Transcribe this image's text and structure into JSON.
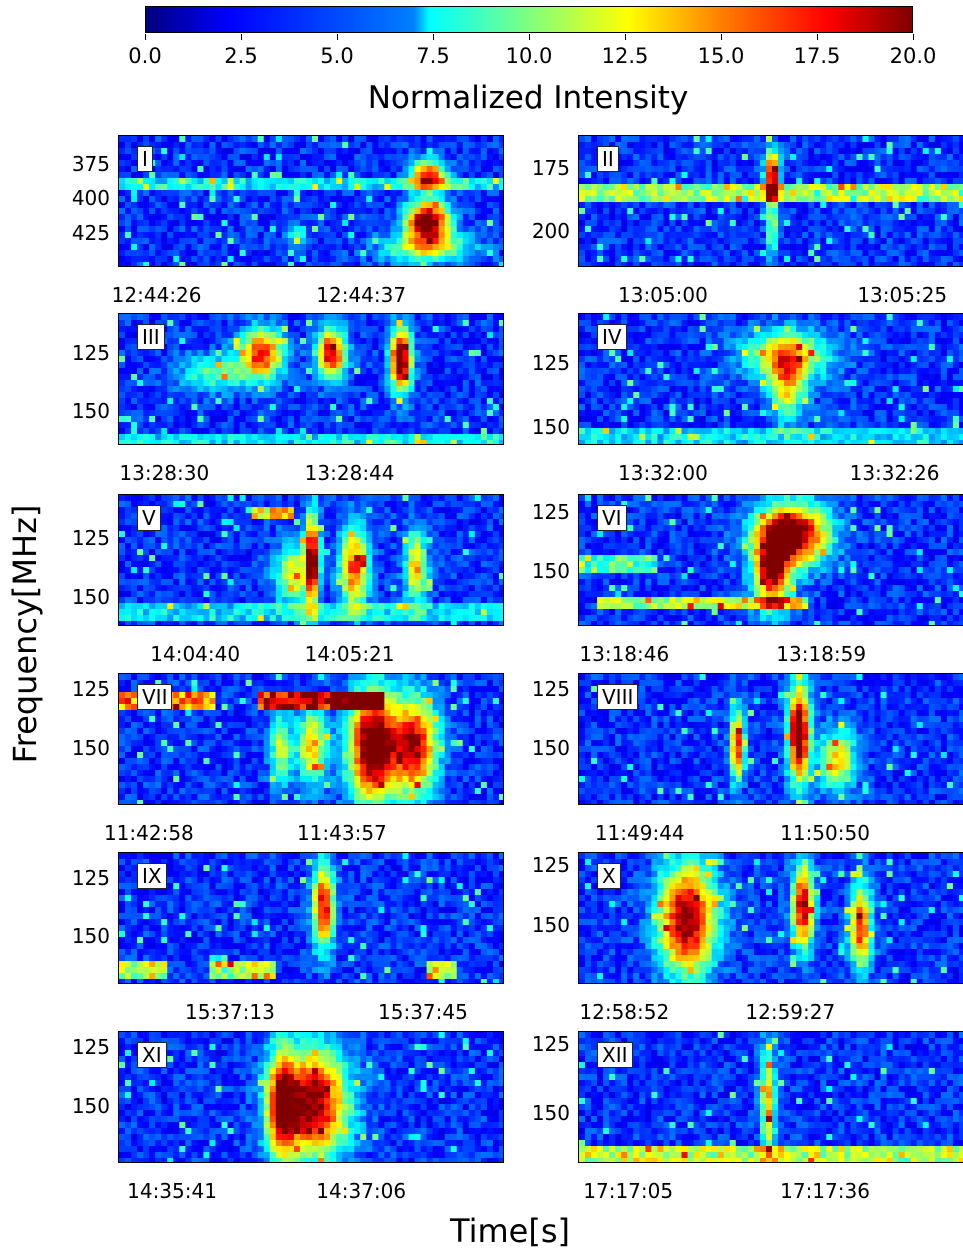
{
  "colorbar": {
    "label": "Normalized Intensity",
    "ticks": [
      "0.0",
      "2.5",
      "5.0",
      "7.5",
      "10.0",
      "12.5",
      "15.0",
      "17.5",
      "20.0"
    ],
    "range": [
      0,
      20
    ]
  },
  "axes": {
    "ylabel": "Frequency[MHz]",
    "xlabel": "Time[s]"
  },
  "chart_data": {
    "type": "heatmap",
    "panels": [
      {
        "id": "I",
        "yticks": [
          "375",
          "400",
          "425"
        ],
        "xticks": [
          "12:44:26",
          "12:44:37"
        ]
      },
      {
        "id": "II",
        "yticks": [
          "175",
          "200"
        ],
        "xticks": [
          "13:05:00",
          "13:05:25"
        ]
      },
      {
        "id": "III",
        "yticks": [
          "125",
          "150"
        ],
        "xticks": [
          "13:28:30",
          "13:28:44"
        ]
      },
      {
        "id": "IV",
        "yticks": [
          "125",
          "150"
        ],
        "xticks": [
          "13:32:00",
          "13:32:26"
        ]
      },
      {
        "id": "V",
        "yticks": [
          "125",
          "150"
        ],
        "xticks": [
          "14:04:40",
          "14:05:21"
        ]
      },
      {
        "id": "VI",
        "yticks": [
          "125",
          "150"
        ],
        "xticks": [
          "13:18:46",
          "13:18:59"
        ]
      },
      {
        "id": "VII",
        "yticks": [
          "125",
          "150"
        ],
        "xticks": [
          "11:42:58",
          "11:43:57"
        ]
      },
      {
        "id": "VIII",
        "yticks": [
          "125",
          "150"
        ],
        "xticks": [
          "11:49:44",
          "11:50:50"
        ]
      },
      {
        "id": "IX",
        "yticks": [
          "125",
          "150"
        ],
        "xticks": [
          "15:37:13",
          "15:37:45"
        ]
      },
      {
        "id": "X",
        "yticks": [
          "125",
          "150"
        ],
        "xticks": [
          "12:58:52",
          "12:59:27"
        ]
      },
      {
        "id": "XI",
        "yticks": [
          "125",
          "150"
        ],
        "xticks": [
          "14:35:41",
          "14:37:06"
        ]
      },
      {
        "id": "XII",
        "yticks": [
          "125",
          "150"
        ],
        "xticks": [
          "17:17:05",
          "17:17:36"
        ]
      }
    ]
  }
}
